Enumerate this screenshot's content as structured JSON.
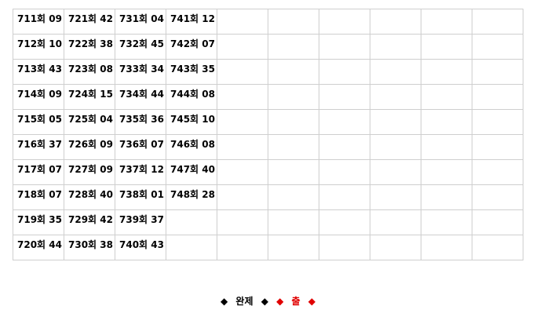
{
  "table": {
    "rows": [
      [
        "711회 09",
        "721회 42",
        "731회 04",
        "741회 12"
      ],
      [
        "712회 10",
        "722회 38",
        "732회 45",
        "742회 07"
      ],
      [
        "713회 43",
        "723회 08",
        "733회 34",
        "743회 35"
      ],
      [
        "714회 09",
        "724회 15",
        "734회 44",
        "744회 08"
      ],
      [
        "715회 05",
        "725회 04",
        "735회 36",
        "745회 10"
      ],
      [
        "716회 37",
        "726회 09",
        "736회 07",
        "746회 08"
      ],
      [
        "717회 07",
        "727회 09",
        "737회 12",
        "747회 40"
      ],
      [
        "718회 07",
        "728회 40",
        "738회 01",
        "748회 28"
      ],
      [
        "719회 35",
        "729회 42",
        "739회 37"
      ],
      [
        "720회 44",
        "730회 38",
        "740회 43"
      ]
    ]
  },
  "footer": {
    "done": "완제",
    "out": "출"
  }
}
